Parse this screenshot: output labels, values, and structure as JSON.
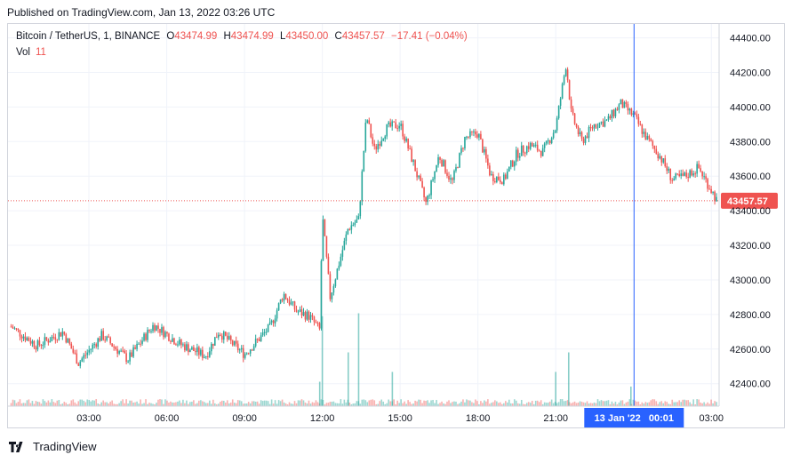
{
  "header": {
    "published": "Published on TradingView.com, Jan 13, 2022 03:26 UTC"
  },
  "legend": {
    "symbol": "Bitcoin / TetherUS, 1, BINANCE",
    "o_label": "O",
    "o": "43474.99",
    "h_label": "H",
    "h": "43474.99",
    "l_label": "L",
    "l": "43450.00",
    "c_label": "C",
    "c": "43457.57",
    "change": "−17.41 (−0.04%)",
    "vol_label": "Vol",
    "vol": "11"
  },
  "footer": {
    "brand": "TradingView",
    "logo_icon": "tradingview-logo-icon"
  },
  "colors": {
    "up": "#26a69a",
    "down": "#ef5350",
    "crosshair": "#2962ff",
    "price_label": "#ef5350"
  },
  "chart_data": {
    "type": "candlestick",
    "symbol": "Bitcoin / TetherUS",
    "interval": "1",
    "exchange": "BINANCE",
    "y_ticks": [
      "42400.00",
      "42600.00",
      "42800.00",
      "43000.00",
      "43200.00",
      "43400.00",
      "43600.00",
      "43800.00",
      "44000.00",
      "44200.00",
      "44400.00"
    ],
    "x_ticks": [
      "03:00",
      "06:00",
      "09:00",
      "12:00",
      "15:00",
      "18:00",
      "21:00",
      "03:00"
    ],
    "ylim": [
      42270,
      44480
    ],
    "last_price": 43457.57,
    "last_price_label": "43457.57",
    "crosshair_label": "13 Jan '22   00:01",
    "crosshair_hour": 24.02,
    "series_hours": [
      0.0,
      1.0,
      2.0,
      2.6,
      3.5,
      4.5,
      5.5,
      6.5,
      7.5,
      8.0,
      9.0,
      10.0,
      10.5,
      11.0,
      11.5,
      11.9,
      12.0,
      12.3,
      13.0,
      13.4,
      13.7,
      14.0,
      14.5,
      15.0,
      15.5,
      16.0,
      16.5,
      17.0,
      17.5,
      18.0,
      18.5,
      19.0,
      19.5,
      20.0,
      20.5,
      21.0,
      21.4,
      21.6,
      22.0,
      22.5,
      23.0,
      23.5,
      24.0,
      24.5,
      25.0,
      25.5,
      26.0,
      26.5,
      27.0,
      27.2
    ],
    "series_prices": [
      42730,
      42620,
      42700,
      42520,
      42680,
      42540,
      42740,
      42630,
      42560,
      42700,
      42570,
      42730,
      42920,
      42820,
      42790,
      42710,
      43380,
      42900,
      43300,
      43350,
      43950,
      43750,
      43880,
      43900,
      43680,
      43440,
      43720,
      43560,
      43820,
      43850,
      43600,
      43580,
      43730,
      43780,
      43740,
      43880,
      44250,
      43960,
      43800,
      43900,
      43920,
      44020,
      43950,
      43820,
      43720,
      43580,
      43600,
      43650,
      43520,
      43460
    ],
    "volume_spikes_hours": [
      11.9,
      12.0,
      13.0,
      13.4,
      14.7,
      21.0,
      21.5,
      23.9
    ],
    "volume_spikes_frac": [
      0.25,
      0.92,
      0.55,
      0.95,
      0.35,
      0.35,
      0.55,
      0.2
    ]
  }
}
